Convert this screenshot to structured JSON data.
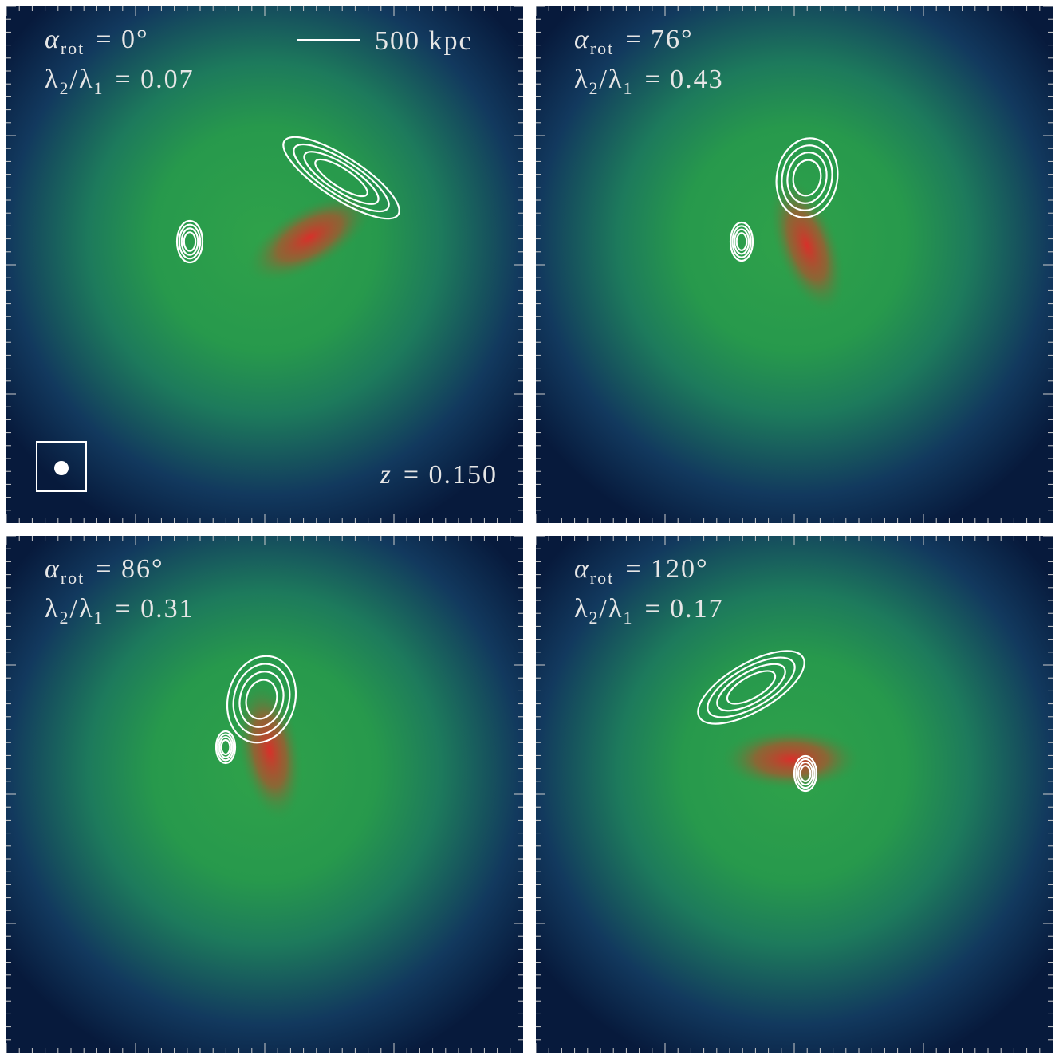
{
  "panels": [
    {
      "angle": {
        "symbol": "α",
        "sub": "rot",
        "text": "= 0°"
      },
      "ratio": {
        "num": "λ",
        "num_sub": "2",
        "den": "/λ",
        "den_sub": "1",
        "text": "= 0.07"
      }
    },
    {
      "angle": {
        "symbol": "α",
        "sub": "rot",
        "text": "= 76°"
      },
      "ratio": {
        "num": "λ",
        "num_sub": "2",
        "den": "/λ",
        "den_sub": "1",
        "text": "= 0.43"
      }
    },
    {
      "angle": {
        "symbol": "α",
        "sub": "rot",
        "text": "= 86°"
      },
      "ratio": {
        "num": "λ",
        "num_sub": "2",
        "den": "/λ",
        "den_sub": "1",
        "text": "= 0.31"
      }
    },
    {
      "angle": {
        "symbol": "α",
        "sub": "rot",
        "text": "= 120°"
      },
      "ratio": {
        "num": "λ",
        "num_sub": "2",
        "den": "/λ",
        "den_sub": "1",
        "text": "= 0.17"
      }
    }
  ],
  "scale_bar": "500 kpc",
  "redshift": {
    "symbol": "z",
    "text": "= 0.150"
  }
}
